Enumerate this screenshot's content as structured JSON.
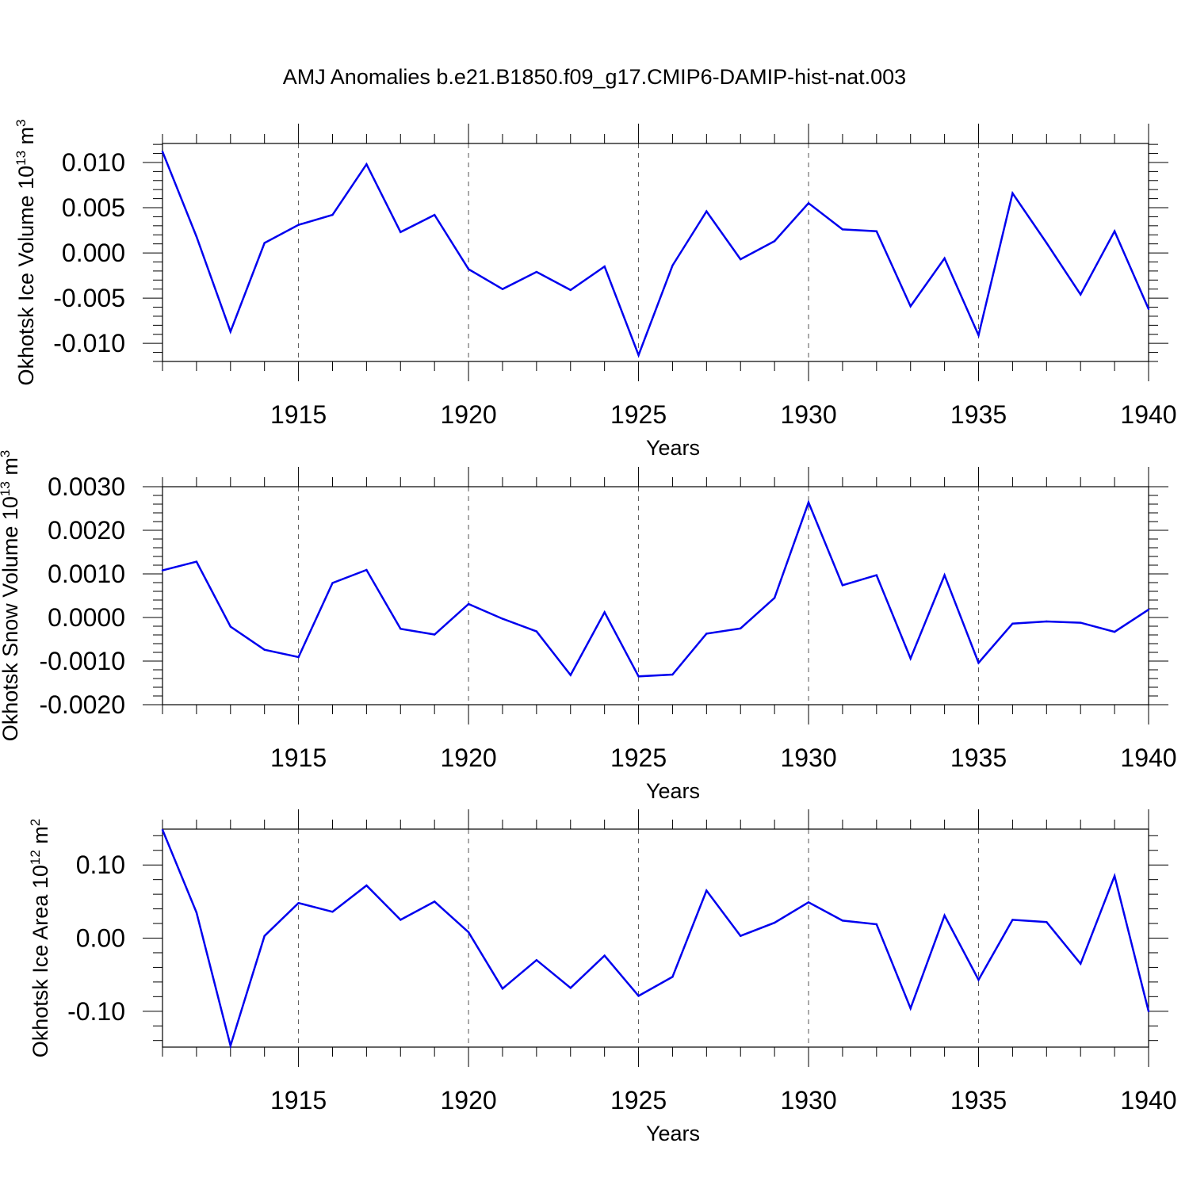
{
  "figure": {
    "title": "AMJ Anomalies b.e21.B1850.f09_g17.CMIP6-DAMIP-hist-nat.003",
    "series_color": "#0000ee"
  },
  "chart_data": [
    {
      "type": "line",
      "xlabel": "Years",
      "ylabel_main": "Okhotsk Ice Volume 10",
      "ylabel_exp": "13",
      "ylabel_unit": "m",
      "ylabel_unit_exp": "3",
      "xlim": [
        1911,
        1940
      ],
      "ylim": [
        -0.012,
        0.0121
      ],
      "xticks": [
        1915,
        1920,
        1925,
        1930,
        1935,
        1940
      ],
      "yticks": [
        -0.01,
        -0.005,
        0.0,
        0.005,
        0.01
      ],
      "ytick_labels": [
        "-0.010",
        "-0.005",
        "0.000",
        "0.005",
        "0.010"
      ],
      "grid_x": [
        1915,
        1920,
        1925,
        1930,
        1935
      ],
      "x": [
        1911,
        1912,
        1913,
        1914,
        1915,
        1916,
        1917,
        1918,
        1919,
        1920,
        1921,
        1922,
        1923,
        1924,
        1925,
        1926,
        1927,
        1928,
        1929,
        1930,
        1931,
        1932,
        1933,
        1934,
        1935,
        1936,
        1937,
        1938,
        1939,
        1940
      ],
      "values": [
        0.0112,
        0.0018,
        -0.0087,
        0.0011,
        0.0031,
        0.0042,
        0.0098,
        0.0023,
        0.0042,
        -0.0018,
        -0.004,
        -0.0021,
        -0.0041,
        -0.0015,
        -0.0113,
        -0.0014,
        0.0046,
        -0.0007,
        0.0013,
        0.0055,
        0.0026,
        0.0024,
        -0.0059,
        -0.0006,
        -0.0091,
        0.0066,
        0.0011,
        -0.0046,
        0.0024,
        -0.0062
      ]
    },
    {
      "type": "line",
      "xlabel": "Years",
      "ylabel_main": "Okhotsk Snow Volume 10",
      "ylabel_exp": "13",
      "ylabel_unit": "m",
      "ylabel_unit_exp": "3",
      "xlim": [
        1911,
        1940
      ],
      "ylim": [
        -0.002,
        0.003
      ],
      "xticks": [
        1915,
        1920,
        1925,
        1930,
        1935,
        1940
      ],
      "yticks": [
        -0.002,
        -0.001,
        0.0,
        0.001,
        0.002,
        0.003
      ],
      "ytick_labels": [
        "-0.0020",
        "-0.0010",
        "0.0000",
        "0.0010",
        "0.0020",
        "0.0030"
      ],
      "grid_x": [
        1915,
        1920,
        1925,
        1930,
        1935
      ],
      "x": [
        1911,
        1912,
        1913,
        1914,
        1915,
        1916,
        1917,
        1918,
        1919,
        1920,
        1921,
        1922,
        1923,
        1924,
        1925,
        1926,
        1927,
        1928,
        1929,
        1930,
        1931,
        1932,
        1933,
        1934,
        1935,
        1936,
        1937,
        1938,
        1939,
        1940
      ],
      "values": [
        0.00108,
        0.00128,
        -0.00021,
        -0.00074,
        -0.00091,
        0.00079,
        0.00109,
        -0.00026,
        -0.00039,
        0.00031,
        -3e-05,
        -0.00032,
        -0.00132,
        0.00012,
        -0.00135,
        -0.00131,
        -0.00037,
        -0.00025,
        0.00045,
        0.00264,
        0.00074,
        0.00097,
        -0.00094,
        0.00097,
        -0.00104,
        -0.00014,
        -9e-05,
        -0.00012,
        -0.00033,
        0.00018
      ]
    },
    {
      "type": "line",
      "xlabel": "Years",
      "ylabel_main": "Okhotsk Ice Area 10",
      "ylabel_exp": "12",
      "ylabel_unit": "m",
      "ylabel_unit_exp": "2",
      "xlim": [
        1911,
        1940
      ],
      "ylim": [
        -0.149,
        0.149
      ],
      "xticks": [
        1915,
        1920,
        1925,
        1930,
        1935,
        1940
      ],
      "yticks": [
        -0.1,
        0.0,
        0.1
      ],
      "ytick_labels": [
        "-0.10",
        "0.00",
        "0.10"
      ],
      "grid_x": [
        1915,
        1920,
        1925,
        1930,
        1935
      ],
      "x": [
        1911,
        1912,
        1913,
        1914,
        1915,
        1916,
        1917,
        1918,
        1919,
        1920,
        1921,
        1922,
        1923,
        1924,
        1925,
        1926,
        1927,
        1928,
        1929,
        1930,
        1931,
        1932,
        1933,
        1934,
        1935,
        1936,
        1937,
        1938,
        1939,
        1940
      ],
      "values": [
        0.148,
        0.035,
        -0.147,
        0.003,
        0.048,
        0.036,
        0.072,
        0.025,
        0.05,
        0.008,
        -0.069,
        -0.03,
        -0.068,
        -0.024,
        -0.079,
        -0.053,
        0.065,
        0.003,
        0.021,
        0.049,
        0.024,
        0.019,
        -0.096,
        0.031,
        -0.057,
        0.025,
        0.022,
        -0.035,
        0.085,
        -0.1
      ]
    }
  ]
}
